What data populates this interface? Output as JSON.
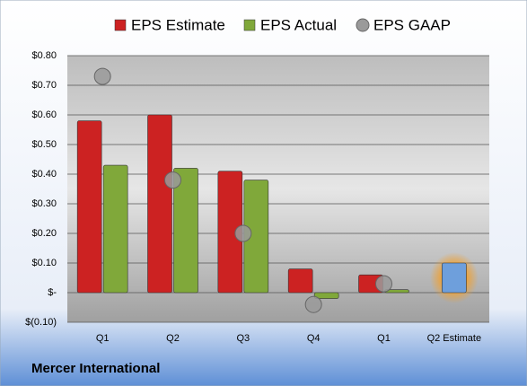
{
  "chart_data": {
    "type": "bar",
    "categories": [
      "Q1",
      "Q2",
      "Q3",
      "Q4",
      "Q1",
      "Q2 Estimate"
    ],
    "series": [
      {
        "name": "EPS Estimate",
        "color": "#cc2222",
        "colors": [
          "#cc2222",
          "#cc2222",
          "#cc2222",
          "#cc2222",
          "#cc2222",
          "#6e9fdc"
        ],
        "values": [
          0.58,
          0.6,
          0.41,
          0.08,
          0.06,
          0.1
        ]
      },
      {
        "name": "EPS Actual",
        "color": "#80a83a",
        "values": [
          0.43,
          0.42,
          0.38,
          -0.02,
          0.01,
          null
        ]
      },
      {
        "name": "EPS GAAP",
        "color": "#9a9a9a",
        "marker": "circle",
        "values": [
          0.73,
          0.38,
          0.2,
          -0.04,
          0.03,
          null
        ]
      }
    ],
    "ylim": [
      -0.1,
      0.8
    ],
    "yticks": [
      {
        "value": -0.1,
        "label": "$(0.10)"
      },
      {
        "value": 0,
        "label": "$-"
      },
      {
        "value": 0.1,
        "label": "$0.10"
      },
      {
        "value": 0.2,
        "label": "$0.20"
      },
      {
        "value": 0.3,
        "label": "$0.30"
      },
      {
        "value": 0.4,
        "label": "$0.40"
      },
      {
        "value": 0.5,
        "label": "$0.50"
      },
      {
        "value": 0.6,
        "label": "$0.60"
      },
      {
        "value": 0.7,
        "label": "$0.70"
      },
      {
        "value": 0.8,
        "label": "$0.80"
      }
    ],
    "grid": true,
    "footer": "Mercer International"
  }
}
